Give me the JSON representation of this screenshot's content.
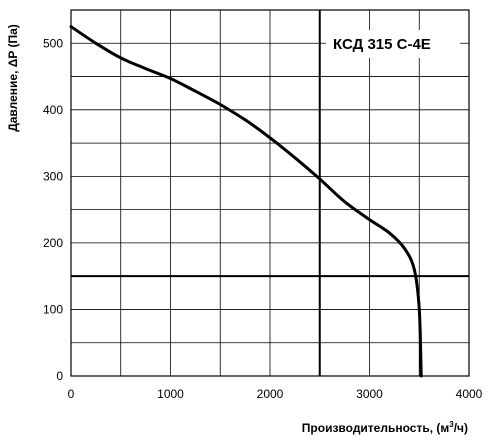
{
  "chart_data": {
    "type": "line",
    "title": "КСД 315 С-4Е",
    "xlabel_main": "Производительность, (м",
    "xlabel_sup": "3",
    "xlabel_end": "/ч)",
    "ylabel": "Давление, ΔP (Па)",
    "xlim": [
      0,
      4000
    ],
    "ylim": [
      0,
      550
    ],
    "x_ticks": [
      0,
      1000,
      2000,
      3000,
      4000
    ],
    "y_ticks": [
      0,
      100,
      200,
      300,
      400,
      500
    ],
    "x_minor_step": 500,
    "y_minor_step": 50,
    "grid": true,
    "reference_lines": {
      "x": 2500,
      "y": 150
    },
    "series": [
      {
        "values": [
          [
            0,
            525
          ],
          [
            250,
            500
          ],
          [
            500,
            478
          ],
          [
            750,
            462
          ],
          [
            1000,
            447
          ],
          [
            1250,
            428
          ],
          [
            1500,
            408
          ],
          [
            1750,
            385
          ],
          [
            2000,
            358
          ],
          [
            2250,
            328
          ],
          [
            2500,
            296
          ],
          [
            2750,
            262
          ],
          [
            3000,
            235
          ],
          [
            3200,
            215
          ],
          [
            3350,
            192
          ],
          [
            3450,
            160
          ],
          [
            3500,
            100
          ],
          [
            3520,
            0
          ]
        ]
      }
    ]
  }
}
